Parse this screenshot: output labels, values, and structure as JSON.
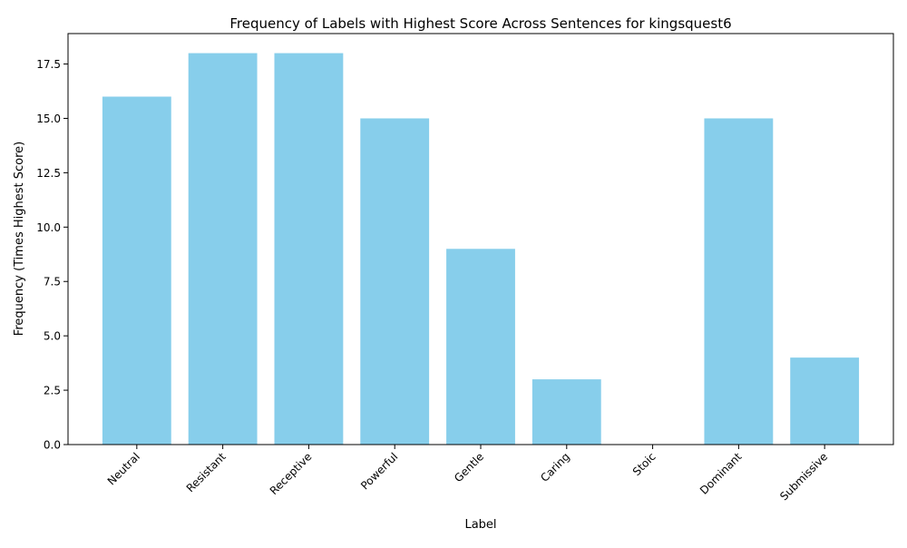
{
  "chart_data": {
    "type": "bar",
    "title": "Frequency of Labels with Highest Score Across Sentences for kingsquest6",
    "xlabel": "Label",
    "ylabel": "Frequency (Times Highest Score)",
    "categories": [
      "Neutral",
      "Resistant",
      "Receptive",
      "Powerful",
      "Gentle",
      "Caring",
      "Stoic",
      "Dominant",
      "Submissive"
    ],
    "values": [
      16,
      18,
      18,
      15,
      9,
      3,
      0,
      15,
      4
    ],
    "ylim": [
      0,
      18.9
    ],
    "yticks": [
      0.0,
      2.5,
      5.0,
      7.5,
      10.0,
      12.5,
      15.0,
      17.5
    ],
    "ytick_labels": [
      "0.0",
      "2.5",
      "5.0",
      "7.5",
      "10.0",
      "12.5",
      "15.0",
      "17.5"
    ],
    "bar_color": "#87ceeb",
    "grid": false,
    "legend": "none"
  }
}
